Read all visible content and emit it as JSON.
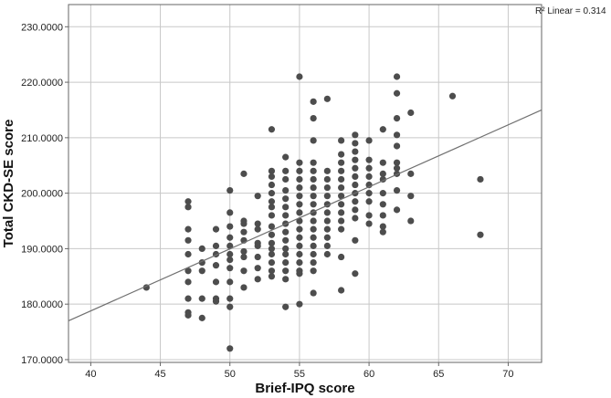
{
  "chart_data": {
    "type": "scatter",
    "title": "",
    "xlabel": "Brief-IPQ score",
    "ylabel": "Total CKD-SE score",
    "xlim": [
      38.4,
      72.4
    ],
    "ylim": [
      169.5,
      234
    ],
    "x_ticks": [
      40,
      45,
      50,
      55,
      60,
      65,
      70
    ],
    "x_tick_labels": [
      "40",
      "45",
      "50",
      "55",
      "60",
      "65",
      "70"
    ],
    "y_ticks": [
      170,
      180,
      190,
      200,
      210,
      220,
      230
    ],
    "y_tick_labels": [
      "170.0000",
      "180.0000",
      "190.0000",
      "200.0000",
      "210.0000",
      "220.0000",
      "230.0000"
    ],
    "grid": true,
    "annotation": "R² Linear = 0.314",
    "fit_line": {
      "x": [
        38.4,
        72.4
      ],
      "y": [
        177.0,
        215.0
      ]
    },
    "colors": {
      "points": "#4d4d4d",
      "fit_line": "#707070",
      "grid": "#c8c8c8",
      "frame": "#666666"
    },
    "series": [
      {
        "points": [
          [
            44,
            183
          ],
          [
            47,
            198.5
          ],
          [
            47,
            197.5
          ],
          [
            47,
            193.5
          ],
          [
            47,
            191.5
          ],
          [
            47,
            189
          ],
          [
            47,
            186
          ],
          [
            47,
            184
          ],
          [
            47,
            181
          ],
          [
            47,
            178.5
          ],
          [
            47,
            178
          ],
          [
            48,
            190
          ],
          [
            48,
            187.5
          ],
          [
            48,
            186
          ],
          [
            48,
            181
          ],
          [
            48,
            177.5
          ],
          [
            49,
            193.5
          ],
          [
            49,
            190.5
          ],
          [
            49,
            189
          ],
          [
            49,
            187
          ],
          [
            49,
            184
          ],
          [
            49,
            181
          ],
          [
            49,
            180.5
          ],
          [
            50,
            200.5
          ],
          [
            50,
            196.5
          ],
          [
            50,
            194
          ],
          [
            50,
            192
          ],
          [
            50,
            190.5
          ],
          [
            50,
            189
          ],
          [
            50,
            188
          ],
          [
            50,
            186.5
          ],
          [
            50,
            184
          ],
          [
            50,
            181
          ],
          [
            50,
            179.5
          ],
          [
            50,
            172
          ],
          [
            51,
            203.5
          ],
          [
            51,
            195
          ],
          [
            51,
            194.5
          ],
          [
            51,
            193
          ],
          [
            51,
            191.5
          ],
          [
            51,
            189.5
          ],
          [
            51,
            188.5
          ],
          [
            51,
            186
          ],
          [
            51,
            183
          ],
          [
            52,
            199.5
          ],
          [
            52,
            194.5
          ],
          [
            52,
            193.5
          ],
          [
            52,
            191
          ],
          [
            52,
            190.5
          ],
          [
            52,
            188.5
          ],
          [
            52,
            186.5
          ],
          [
            52,
            184.5
          ],
          [
            53,
            204
          ],
          [
            53,
            203
          ],
          [
            53,
            201.5
          ],
          [
            53,
            200
          ],
          [
            53,
            198.5
          ],
          [
            53,
            197.5
          ],
          [
            53,
            196
          ],
          [
            53,
            194
          ],
          [
            53,
            192.5
          ],
          [
            53,
            191
          ],
          [
            53,
            190
          ],
          [
            53,
            189
          ],
          [
            53,
            187.5
          ],
          [
            53,
            186
          ],
          [
            53,
            185
          ],
          [
            53,
            211.5
          ],
          [
            54,
            206.5
          ],
          [
            54,
            204
          ],
          [
            54,
            202.5
          ],
          [
            54,
            200.5
          ],
          [
            54,
            199
          ],
          [
            54,
            197.5
          ],
          [
            54,
            196
          ],
          [
            54,
            194.5
          ],
          [
            54,
            193
          ],
          [
            54,
            191.5
          ],
          [
            54,
            190
          ],
          [
            54,
            189
          ],
          [
            54,
            187.5
          ],
          [
            54,
            186
          ],
          [
            54,
            184.5
          ],
          [
            54,
            179.5
          ],
          [
            55,
            221
          ],
          [
            55,
            205.5
          ],
          [
            55,
            204
          ],
          [
            55,
            202.5
          ],
          [
            55,
            201
          ],
          [
            55,
            199.5
          ],
          [
            55,
            198
          ],
          [
            55,
            196.5
          ],
          [
            55,
            195
          ],
          [
            55,
            193.5
          ],
          [
            55,
            192
          ],
          [
            55,
            190.5
          ],
          [
            55,
            189
          ],
          [
            55,
            187.5
          ],
          [
            55,
            186
          ],
          [
            55,
            185.5
          ],
          [
            55,
            180
          ],
          [
            56,
            216.5
          ],
          [
            56,
            213.5
          ],
          [
            56,
            209.5
          ],
          [
            56,
            205.5
          ],
          [
            56,
            204
          ],
          [
            56,
            202.5
          ],
          [
            56,
            201
          ],
          [
            56,
            199.5
          ],
          [
            56,
            198
          ],
          [
            56,
            196.5
          ],
          [
            56,
            195
          ],
          [
            56,
            193.5
          ],
          [
            56,
            192
          ],
          [
            56,
            190.5
          ],
          [
            56,
            189
          ],
          [
            56,
            187.5
          ],
          [
            56,
            186
          ],
          [
            56,
            182
          ],
          [
            57,
            217
          ],
          [
            57,
            204
          ],
          [
            57,
            202.5
          ],
          [
            57,
            201
          ],
          [
            57,
            199.5
          ],
          [
            57,
            198
          ],
          [
            57,
            196.5
          ],
          [
            57,
            195
          ],
          [
            57,
            193.5
          ],
          [
            57,
            192
          ],
          [
            57,
            190.5
          ],
          [
            57,
            189
          ],
          [
            58,
            209.5
          ],
          [
            58,
            207
          ],
          [
            58,
            205.5
          ],
          [
            58,
            204
          ],
          [
            58,
            202.5
          ],
          [
            58,
            201
          ],
          [
            58,
            199.5
          ],
          [
            58,
            198
          ],
          [
            58,
            196.5
          ],
          [
            58,
            195
          ],
          [
            58,
            193.5
          ],
          [
            58,
            188.5
          ],
          [
            58,
            182.5
          ],
          [
            59,
            210.5
          ],
          [
            59,
            209
          ],
          [
            59,
            207.5
          ],
          [
            59,
            206
          ],
          [
            59,
            204.5
          ],
          [
            59,
            203
          ],
          [
            59,
            201.5
          ],
          [
            59,
            200
          ],
          [
            59,
            198.5
          ],
          [
            59,
            197
          ],
          [
            59,
            195.5
          ],
          [
            59,
            191.5
          ],
          [
            59,
            185.5
          ],
          [
            60,
            209.5
          ],
          [
            60,
            206
          ],
          [
            60,
            204.5
          ],
          [
            60,
            203
          ],
          [
            60,
            201.5
          ],
          [
            60,
            200
          ],
          [
            60,
            198.5
          ],
          [
            60,
            196
          ],
          [
            60,
            194.5
          ],
          [
            61,
            211.5
          ],
          [
            61,
            205.5
          ],
          [
            61,
            203.5
          ],
          [
            61,
            202.5
          ],
          [
            61,
            200
          ],
          [
            61,
            198
          ],
          [
            61,
            196
          ],
          [
            61,
            194
          ],
          [
            61,
            193
          ],
          [
            62,
            221
          ],
          [
            62,
            218
          ],
          [
            62,
            213.5
          ],
          [
            62,
            210.5
          ],
          [
            62,
            208.5
          ],
          [
            62,
            205.5
          ],
          [
            62,
            204.5
          ],
          [
            62,
            203.5
          ],
          [
            62,
            200.5
          ],
          [
            62,
            197
          ],
          [
            63,
            214.5
          ],
          [
            63,
            203.5
          ],
          [
            63,
            199.5
          ],
          [
            63,
            195
          ],
          [
            66,
            217.5
          ],
          [
            68,
            202.5
          ],
          [
            68,
            192.5
          ]
        ]
      }
    ]
  }
}
